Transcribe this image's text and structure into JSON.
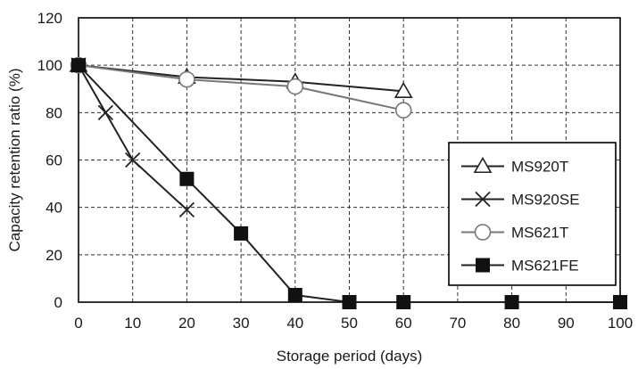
{
  "chart_data": {
    "type": "line",
    "xlabel": "Storage period (days)",
    "ylabel": "Capacity retention ratio (%)",
    "xlim": [
      0,
      100
    ],
    "ylim": [
      0,
      120
    ],
    "x_ticks": [
      "0",
      "10",
      "20",
      "30",
      "40",
      "50",
      "60",
      "70",
      "80",
      "90",
      "100"
    ],
    "y_ticks": [
      "0",
      "20",
      "40",
      "60",
      "80",
      "100",
      "120"
    ],
    "grid": true,
    "grid_style": "dashed",
    "legend_position": "right",
    "series": [
      {
        "name": "MS920T",
        "marker": "triangle-open",
        "color": "#222222",
        "points": [
          [
            0,
            100
          ],
          [
            20,
            95
          ],
          [
            40,
            93
          ],
          [
            60,
            89
          ]
        ]
      },
      {
        "name": "MS920SE",
        "marker": "x",
        "color": "#222222",
        "points": [
          [
            0,
            100
          ],
          [
            5,
            80
          ],
          [
            10,
            60
          ],
          [
            20,
            39
          ]
        ]
      },
      {
        "name": "MS621T",
        "marker": "circle-open",
        "color": "#777777",
        "points": [
          [
            0,
            100
          ],
          [
            20,
            94
          ],
          [
            40,
            91
          ],
          [
            60,
            81
          ]
        ]
      },
      {
        "name": "MS621FE",
        "marker": "square-filled",
        "color": "#222222",
        "points": [
          [
            0,
            100
          ],
          [
            20,
            52
          ],
          [
            30,
            29
          ],
          [
            40,
            3
          ],
          [
            50,
            0
          ],
          [
            60,
            0
          ],
          [
            80,
            0
          ],
          [
            100,
            0
          ]
        ]
      }
    ]
  }
}
